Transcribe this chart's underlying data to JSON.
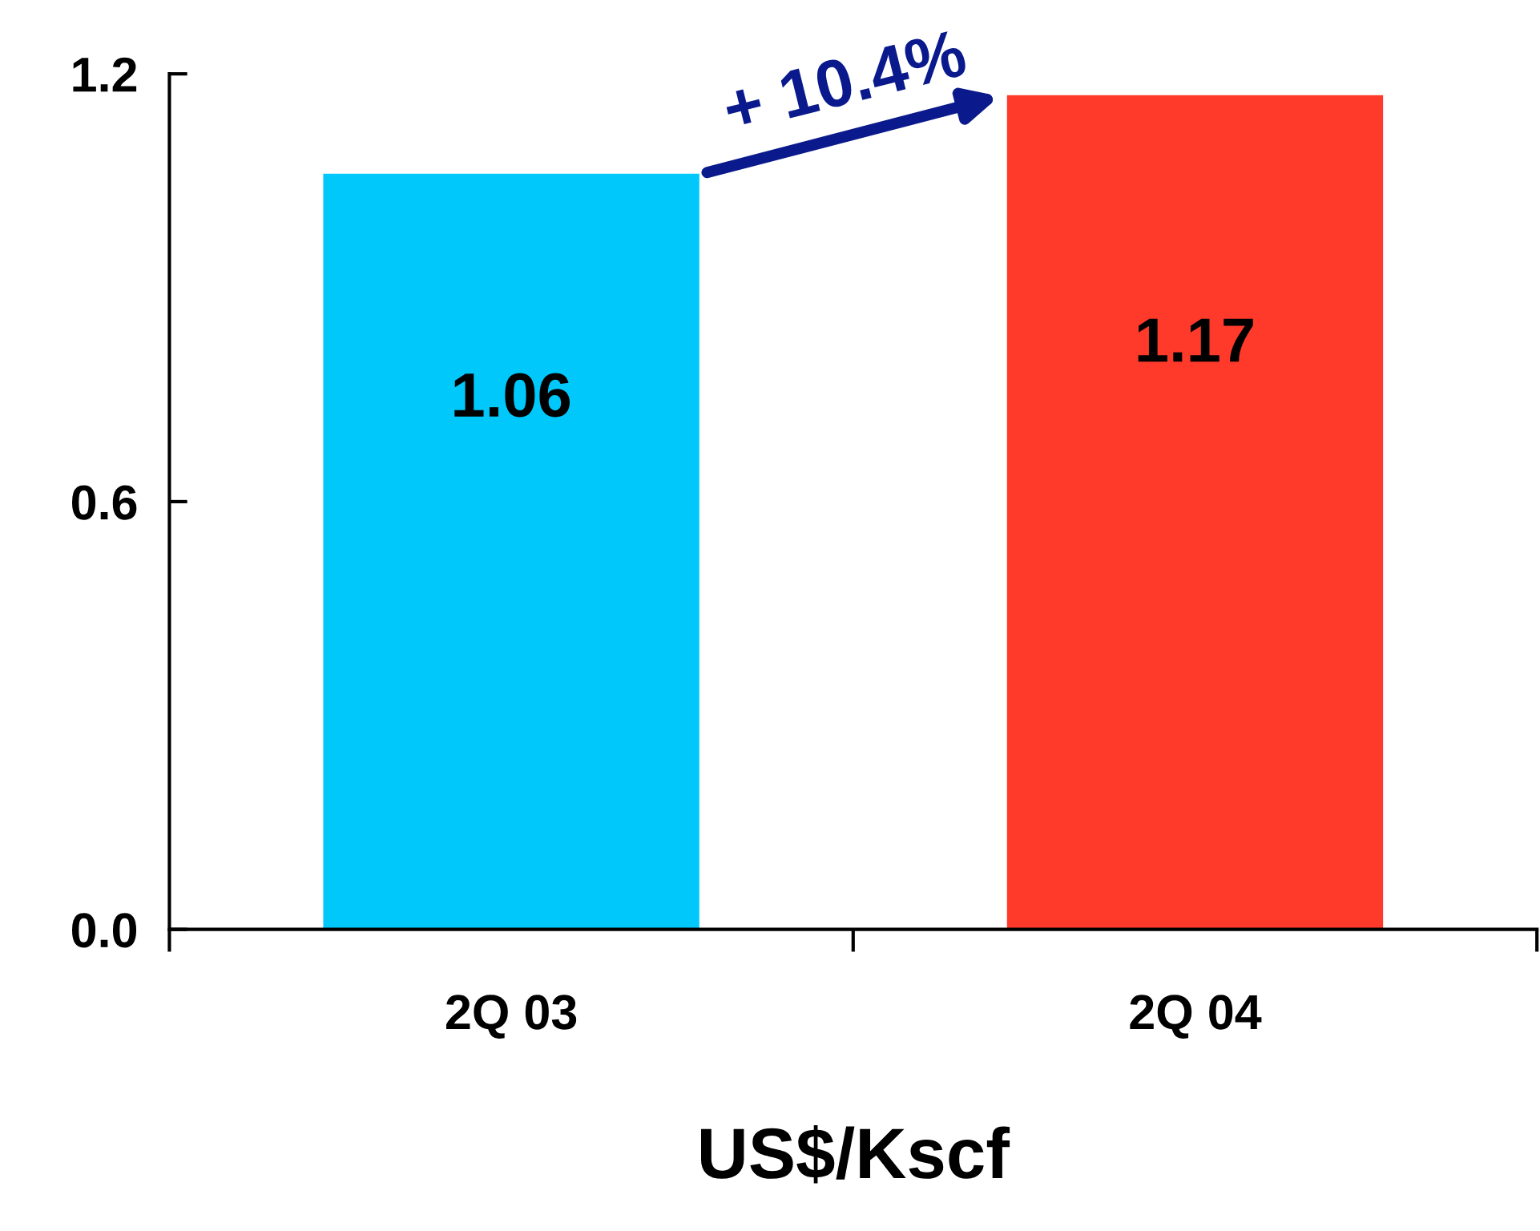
{
  "chart_data": {
    "type": "bar",
    "xlabel": "US$/Kscf",
    "categories": [
      "2Q 03",
      "2Q 04"
    ],
    "values": [
      1.06,
      1.17
    ],
    "colors": [
      "#00c8fa",
      "#ff3a2a"
    ],
    "data_labels": true,
    "annotations": [
      "+ 10.4%"
    ],
    "ylim": [
      0,
      1.2
    ],
    "yticks": [
      {
        "value": 0,
        "label": "0.0"
      },
      {
        "value": 0.6,
        "label": "0.6"
      },
      {
        "value": 1.2,
        "label": "1.2"
      }
    ],
    "grid": false,
    "legend": false
  }
}
